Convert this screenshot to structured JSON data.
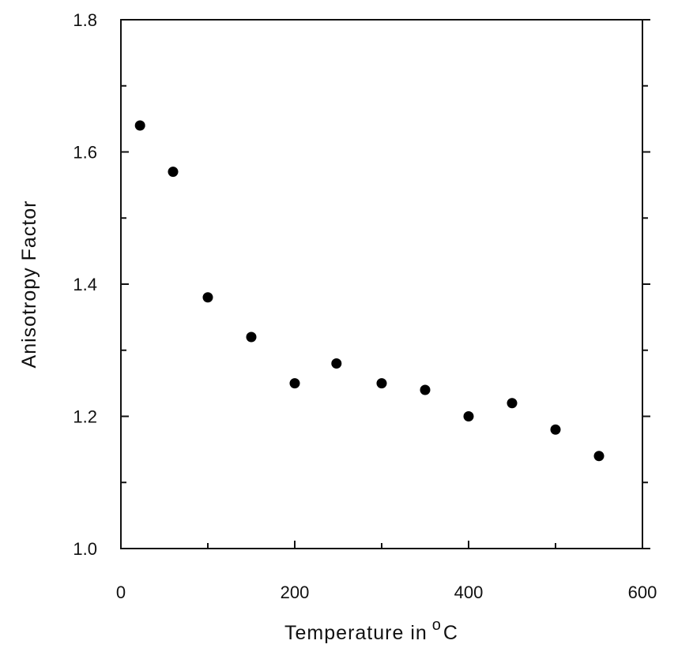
{
  "chart_data": {
    "type": "scatter",
    "title": "",
    "xlabel": "Temperature in",
    "xlabel_superscript": "o",
    "xlabel_suffix": "C",
    "ylabel": "Anisotropy Factor",
    "xlim": [
      0,
      600
    ],
    "ylim": [
      1.0,
      1.8
    ],
    "x_ticks": [
      0,
      200,
      400,
      600
    ],
    "x_tick_labels": [
      "0",
      "200",
      "400",
      "600"
    ],
    "x_minor_ticks": [
      100,
      300,
      500
    ],
    "y_ticks": [
      1.0,
      1.2,
      1.4,
      1.6,
      1.8
    ],
    "y_tick_labels": [
      "1.0",
      "1.2",
      "1.4",
      "1.6",
      "1.8"
    ],
    "y_minor_ticks": [
      1.1,
      1.3,
      1.5,
      1.7
    ],
    "grid": false,
    "marker": "filled-circle",
    "marker_color": "#000000",
    "series": [
      {
        "x": [
          22,
          60,
          100,
          150,
          200,
          248,
          300,
          350,
          400,
          450,
          500,
          550
        ],
        "y": [
          1.64,
          1.57,
          1.38,
          1.32,
          1.25,
          1.28,
          1.25,
          1.24,
          1.2,
          1.22,
          1.18,
          1.14
        ]
      }
    ]
  }
}
